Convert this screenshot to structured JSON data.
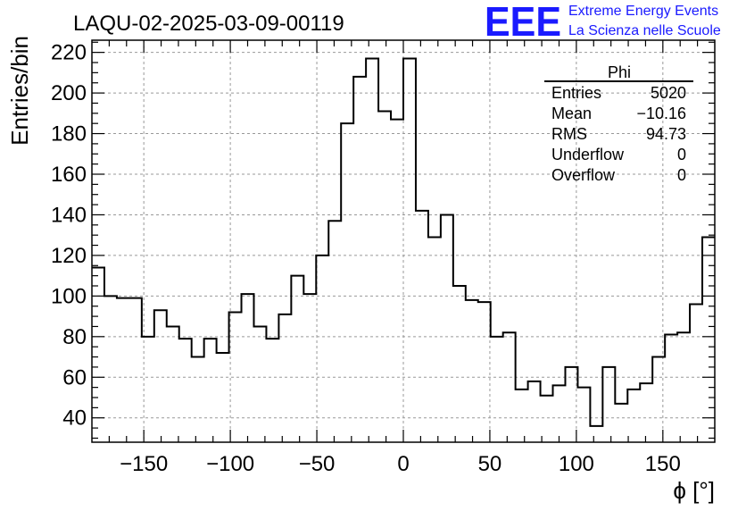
{
  "chart_data": {
    "type": "histogram",
    "title": "LAQU-02-2025-03-09-00119",
    "xlabel": "ϕ [°]",
    "ylabel": "Entries/bin",
    "xlim": [
      -180,
      180
    ],
    "ylim": [
      28,
      226
    ],
    "bin_width": 7.2,
    "grid": true,
    "x_ticks": [
      -150,
      -100,
      -50,
      0,
      50,
      100,
      150
    ],
    "x_tick_labels": [
      "−150",
      "−100",
      "−50",
      "0",
      "50",
      "100",
      "150"
    ],
    "y_ticks": [
      40,
      60,
      80,
      100,
      120,
      140,
      160,
      180,
      200,
      220
    ],
    "y_tick_labels": [
      "40",
      "60",
      "80",
      "100",
      "120",
      "140",
      "160",
      "180",
      "200",
      "220"
    ],
    "series": [
      {
        "name": "Phi",
        "bin_edges_start": -180,
        "values": [
          114,
          100,
          99,
          99,
          80,
          93,
          85,
          79,
          70,
          79,
          72,
          92,
          101,
          85,
          79,
          91,
          110,
          101,
          120,
          137,
          185,
          208,
          217,
          191,
          187,
          217,
          142,
          129,
          140,
          105,
          98,
          97,
          80,
          82,
          54,
          58,
          51,
          56,
          65,
          55,
          36,
          65,
          47,
          54,
          57,
          70,
          81,
          82,
          96,
          129
        ]
      }
    ]
  },
  "stats_box": {
    "title": "Phi",
    "rows": [
      {
        "label": "Entries",
        "value": "5020"
      },
      {
        "label": "Mean",
        "value": "−10.16"
      },
      {
        "label": "RMS",
        "value": "94.73"
      },
      {
        "label": "Underflow",
        "value": "0"
      },
      {
        "label": "Overflow",
        "value": "0"
      }
    ]
  },
  "logo": {
    "mark": "EEE",
    "line1": "Extreme Energy Events",
    "line2": "La Scienza nelle Scuole",
    "color": "#1a1aff"
  }
}
